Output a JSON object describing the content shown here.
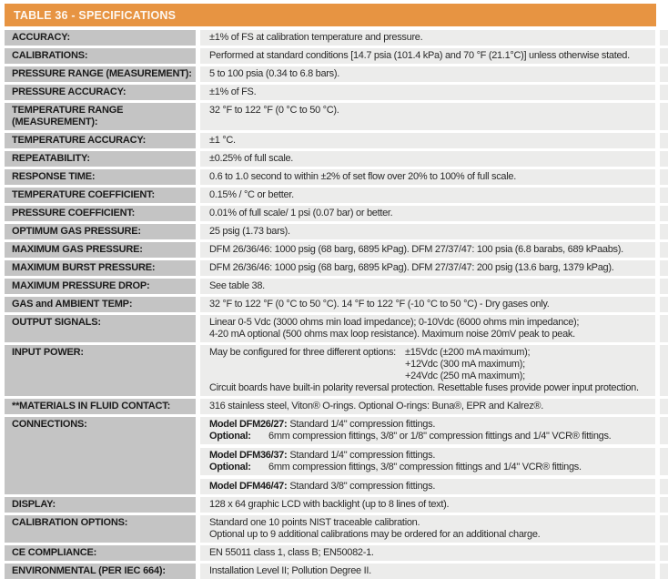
{
  "header": {
    "title": "TABLE 36 - SPECIFICATIONS"
  },
  "colors": {
    "accent_orange": "#E79442",
    "label_gray": "#C4C4C4",
    "cell_gray": "#ECECEB",
    "header_text": "#FDF8F2"
  },
  "rows": [
    {
      "label": "ACCURACY:",
      "value": "±1% of FS at calibration temperature and pressure."
    },
    {
      "label": "CALIBRATIONS:",
      "value": "Performed at standard conditions [14.7 psia (101.4 kPa) and 70 °F (21.1°C)] unless otherwise stated."
    },
    {
      "label": "PRESSURE RANGE (MEASUREMENT):",
      "value": "5 to 100 psia (0.34 to 6.8 bars)."
    },
    {
      "label": "PRESSURE ACCURACY:",
      "value": "±1% of FS."
    },
    {
      "label": "TEMPERATURE RANGE (MEASUREMENT):",
      "value": "32 °F to 122 °F (0 °C to 50 °C)."
    },
    {
      "label": "TEMPERATURE ACCURACY:",
      "value": "±1 °C."
    },
    {
      "label": "REPEATABILITY:",
      "value": "±0.25% of full scale."
    },
    {
      "label": "RESPONSE TIME:",
      "value": "0.6 to 1.0 second to within ±2% of set flow over 20% to 100% of full scale."
    },
    {
      "label": "TEMPERATURE COEFFICIENT:",
      "value": "0.15% / °C or better."
    },
    {
      "label": "PRESSURE COEFFICIENT:",
      "value": "0.01% of full scale/ 1 psi (0.07 bar) or better."
    },
    {
      "label": "OPTIMUM GAS PRESSURE:",
      "value": "25 psig (1.73 bars)."
    },
    {
      "label": "MAXIMUM GAS PRESSURE:",
      "value": "DFM 26/36/46: 1000 psig (68 barg, 6895 kPag). DFM 27/37/47: 100 psia (6.8 barabs, 689 kPaabs)."
    },
    {
      "label": "MAXIMUM BURST PRESSURE:",
      "value": "DFM 26/36/46: 1000 psig (68 barg, 6895 kPag). DFM 27/37/47: 200 psig (13.6 barg, 1379 kPag)."
    },
    {
      "label": "MAXIMUM PRESSURE DROP:",
      "value": "See table 38."
    },
    {
      "label": "GAS and AMBIENT TEMP:",
      "value": "32 °F to 122 °F (0 °C to 50 °C). 14 °F to 122 °F (-10 °C to 50 °C) - Dry gases only."
    },
    {
      "label": "OUTPUT SIGNALS:",
      "lines": [
        "Linear 0-5 Vdc (3000 ohms min load impedance); 0-10Vdc (6000 ohms min impedance);",
        "4-20 mA optional (500 ohms max loop resistance). Maximum noise 20mV peak to peak."
      ]
    },
    {
      "label": "INPUT POWER:",
      "intro": "May be configured for three different options:",
      "options": [
        "±15Vdc (±200 mA maximum);",
        "+12Vdc (300 mA maximum);",
        "+24Vdc (250 mA maximum);"
      ],
      "footer": "Circuit boards have built-in polarity reversal protection. Resettable fuses provide power input protection."
    },
    {
      "label": "**MATERIALS IN FLUID CONTACT:",
      "value": "316 stainless steel, Viton® O-rings. Optional O-rings: Buna®, EPR and Kalrez®."
    },
    {
      "label": "CONNECTIONS:",
      "sections": [
        {
          "model_label": "Model DFM26/27:",
          "model_text": "Standard 1/4\" compression fittings.",
          "optional_label": "Optional:",
          "optional_text": "6mm compression fittings, 3/8\" or 1/8\" compression fittings and 1/4\" VCR® fittings."
        },
        {
          "model_label": "Model DFM36/37:",
          "model_text": "Standard 1/4\" compression fittings.",
          "optional_label": "Optional:",
          "optional_text": "6mm compression fittings, 3/8\" compression fittings and 1/4\" VCR® fittings."
        },
        {
          "model_label": "Model DFM46/47:",
          "model_text": "Standard 3/8\" compression fittings."
        }
      ]
    },
    {
      "label": "DISPLAY:",
      "value": "128 x 64 graphic LCD with backlight (up to 8 lines of text)."
    },
    {
      "label": "CALIBRATION OPTIONS:",
      "lines": [
        "Standard one 10 points NIST traceable calibration.",
        "Optional up to 9 additional calibrations may be ordered for an additional charge."
      ]
    },
    {
      "label": "CE COMPLIANCE:",
      "value": "EN 55011 class 1, class B; EN50082-1."
    },
    {
      "label": "ENVIRONMENTAL (PER IEC 664):",
      "value": "Installation Level II; Pollution Degree II."
    }
  ]
}
